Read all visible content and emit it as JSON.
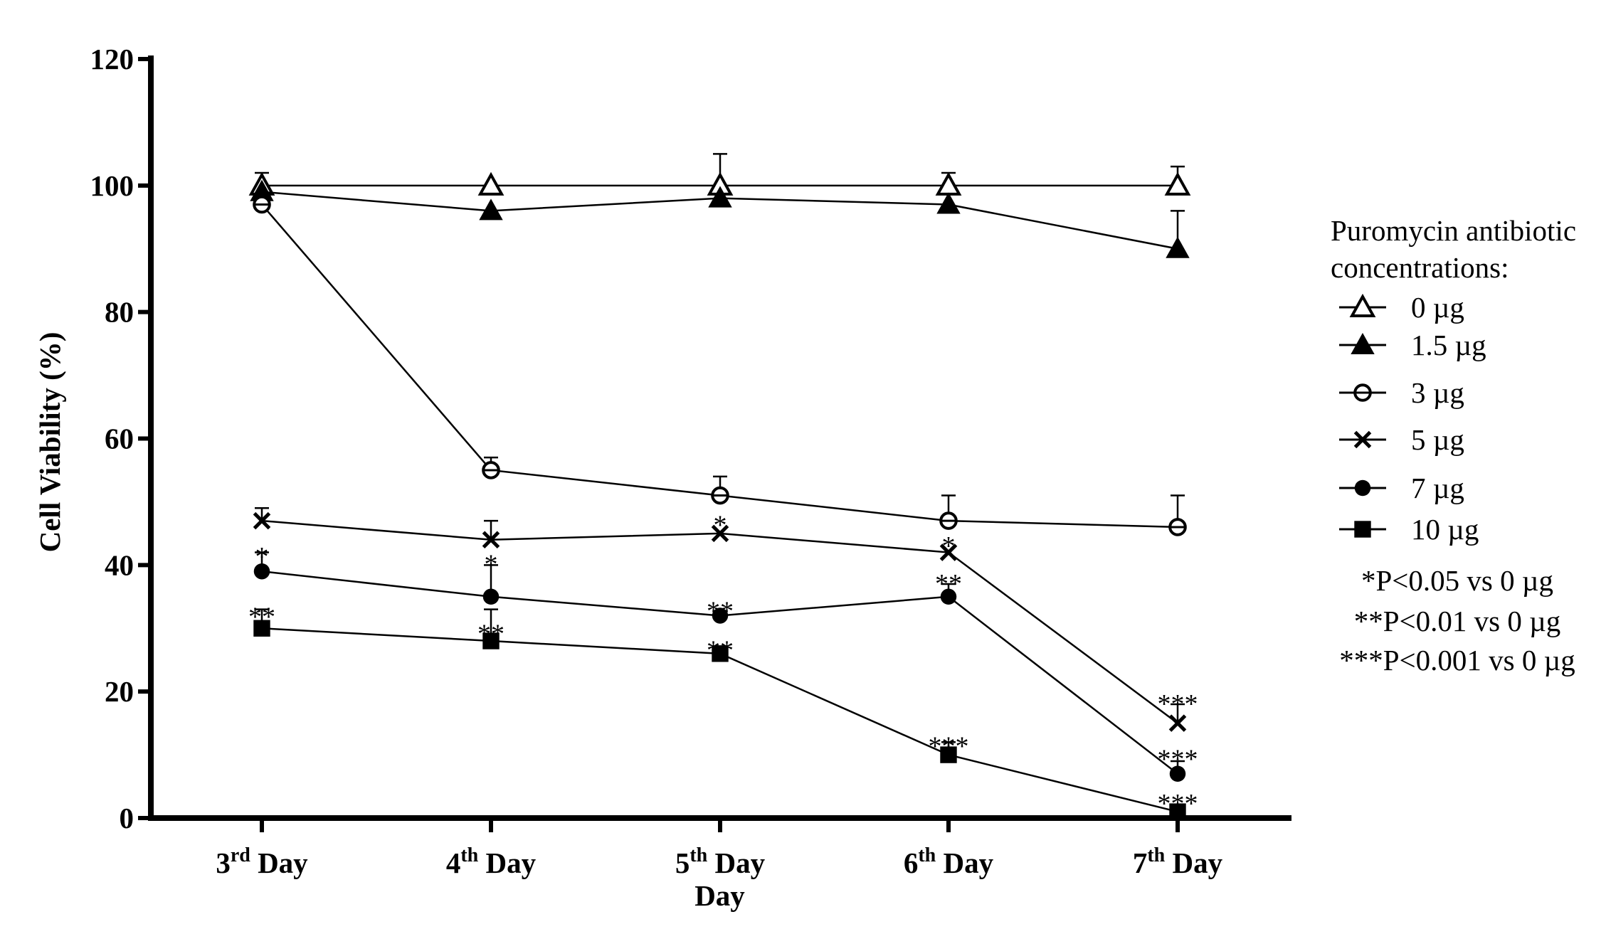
{
  "chart_data": {
    "type": "line",
    "xlabel": "Day",
    "ylabel": "Cell Viability (%)",
    "ylim": [
      0,
      120
    ],
    "yticks": [
      0,
      20,
      40,
      60,
      80,
      100,
      120
    ],
    "categories": [
      {
        "num": "3",
        "sup": "rd",
        "rest": " Day"
      },
      {
        "num": "4",
        "sup": "th",
        "rest": " Day"
      },
      {
        "num": "5",
        "sup": "th",
        "rest": " Day"
      },
      {
        "num": "6",
        "sup": "th",
        "rest": " Day"
      },
      {
        "num": "7",
        "sup": "th",
        "rest": " Day"
      }
    ],
    "series": [
      {
        "name": "0 µg",
        "marker": "triangle-open",
        "values": [
          100,
          100,
          100,
          100,
          100
        ],
        "err": [
          2,
          0,
          5,
          2,
          3
        ]
      },
      {
        "name": "1.5 µg",
        "marker": "triangle-filled",
        "values": [
          99,
          96,
          98,
          97,
          90
        ],
        "err": [
          0,
          0,
          0,
          0,
          6
        ]
      },
      {
        "name": "3 µg",
        "marker": "circle-open",
        "values": [
          97,
          55,
          51,
          47,
          46
        ],
        "err": [
          0,
          2,
          3,
          4,
          5
        ]
      },
      {
        "name": "5 µg",
        "marker": "x",
        "values": [
          47,
          44,
          45,
          42,
          15
        ],
        "err": [
          2,
          3,
          0,
          0,
          3
        ]
      },
      {
        "name": "7 µg",
        "marker": "circle-filled",
        "values": [
          39,
          35,
          32,
          35,
          7
        ],
        "err": [
          3,
          5,
          0,
          2,
          2
        ]
      },
      {
        "name": "10 µg",
        "marker": "square-filled",
        "values": [
          30,
          28,
          26,
          10,
          1
        ],
        "err": [
          3,
          5,
          0,
          2,
          0
        ]
      }
    ],
    "annotations": [
      {
        "text": "*",
        "x": 0,
        "y": 41.5
      },
      {
        "text": "**",
        "x": 0,
        "y": 32.0
      },
      {
        "text": "*",
        "x": 1,
        "y": 40.3
      },
      {
        "text": "**",
        "x": 1,
        "y": 29.3
      },
      {
        "text": "*",
        "x": 2,
        "y": 46.5
      },
      {
        "text": "**",
        "x": 2,
        "y": 32.9
      },
      {
        "text": "**",
        "x": 2,
        "y": 26.7
      },
      {
        "text": "*",
        "x": 3,
        "y": 43.2
      },
      {
        "text": "**",
        "x": 3,
        "y": 37.2
      },
      {
        "text": "***",
        "x": 3,
        "y": 11.5
      },
      {
        "text": "***",
        "x": 4,
        "y": 18.2
      },
      {
        "text": "***",
        "x": 4,
        "y": 9.5
      },
      {
        "text": "***",
        "x": 4,
        "y": 2.5
      }
    ],
    "legend": {
      "title_lines": [
        "Puromycin antibiotic",
        "concentrations:"
      ],
      "position": "right"
    },
    "notes": [
      "*P<0.05 vs 0 µg",
      "**P<0.01 vs 0 µg",
      "***P<0.001 vs 0 µg"
    ]
  }
}
